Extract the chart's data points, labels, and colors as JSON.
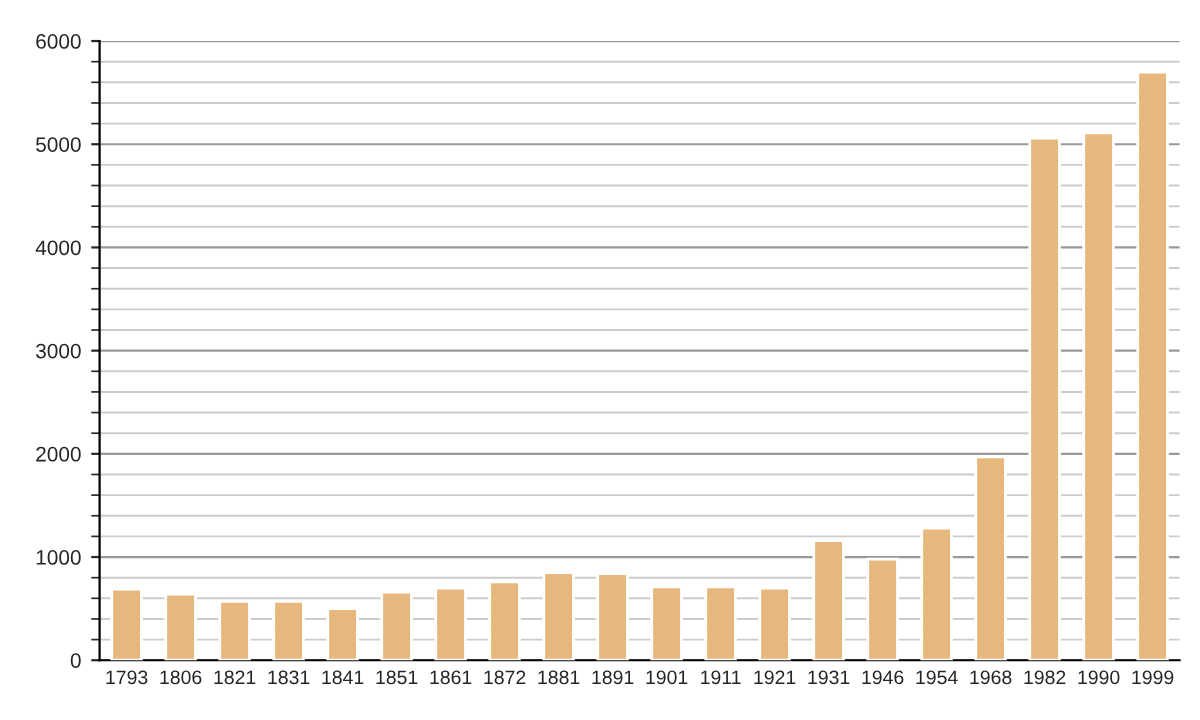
{
  "chart_data": {
    "type": "bar",
    "categories": [
      "1793",
      "1806",
      "1821",
      "1831",
      "1841",
      "1851",
      "1861",
      "1872",
      "1881",
      "1891",
      "1901",
      "1911",
      "1921",
      "1931",
      "1946",
      "1954",
      "1968",
      "1982",
      "1990",
      "1999"
    ],
    "values": [
      690,
      640,
      570,
      570,
      500,
      660,
      700,
      760,
      850,
      840,
      710,
      710,
      700,
      1160,
      980,
      1280,
      1970,
      5060,
      5110,
      5700
    ],
    "color": "#e6b87e",
    "ylim": [
      0,
      6000
    ],
    "yticks": [
      0,
      1000,
      2000,
      3000,
      4000,
      5000,
      6000
    ],
    "grid": "y",
    "legend": false
  }
}
